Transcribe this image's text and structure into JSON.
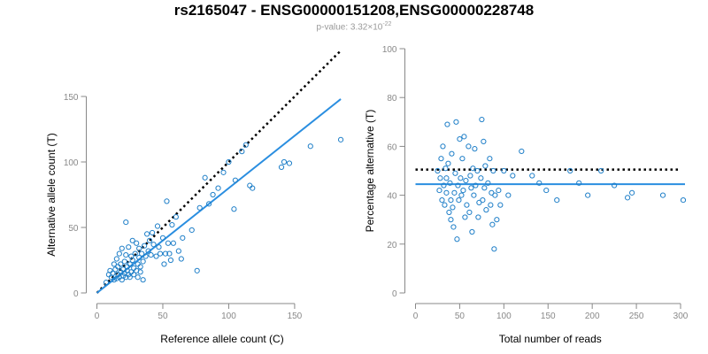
{
  "header": {
    "title": "rs2165047 - ENSG00000151208,ENSG00000228748",
    "subtitle_prefix": "p-value: 3.32×10",
    "subtitle_exponent": "-22"
  },
  "colors": {
    "points": "#1f7fc8",
    "fit": "#2a8ee0",
    "reference": "#000000",
    "axis": "#888888"
  },
  "chart_data": [
    {
      "type": "scatter",
      "xlabel": "Reference allele count (C)",
      "ylabel": "Alternative allele count (T)",
      "xlim": [
        0,
        190
      ],
      "ylim": [
        0,
        150
      ],
      "xticks": [
        0,
        50,
        100,
        150
      ],
      "yticks": [
        0,
        50,
        100,
        150
      ],
      "grid": false,
      "points": [
        [
          7,
          8
        ],
        [
          9,
          14
        ],
        [
          10,
          17
        ],
        [
          11,
          12
        ],
        [
          12,
          15
        ],
        [
          13,
          10
        ],
        [
          13,
          22
        ],
        [
          14,
          18
        ],
        [
          15,
          11
        ],
        [
          15,
          26
        ],
        [
          16,
          14
        ],
        [
          16,
          20
        ],
        [
          17,
          12
        ],
        [
          17,
          30
        ],
        [
          18,
          16
        ],
        [
          18,
          22
        ],
        [
          19,
          10
        ],
        [
          19,
          34
        ],
        [
          20,
          13
        ],
        [
          20,
          18
        ],
        [
          21,
          15
        ],
        [
          21,
          24
        ],
        [
          22,
          12
        ],
        [
          22,
          29
        ],
        [
          22,
          54
        ],
        [
          23,
          17
        ],
        [
          23,
          20
        ],
        [
          24,
          14
        ],
        [
          24,
          35
        ],
        [
          25,
          22
        ],
        [
          25,
          12
        ],
        [
          26,
          16
        ],
        [
          26,
          28
        ],
        [
          27,
          25
        ],
        [
          27,
          40
        ],
        [
          28,
          14
        ],
        [
          28,
          19
        ],
        [
          29,
          30
        ],
        [
          30,
          17
        ],
        [
          30,
          38
        ],
        [
          31,
          22
        ],
        [
          31,
          12
        ],
        [
          32,
          27
        ],
        [
          32,
          34
        ],
        [
          33,
          20
        ],
        [
          33,
          16
        ],
        [
          34,
          30
        ],
        [
          35,
          24
        ],
        [
          35,
          10
        ],
        [
          36,
          36
        ],
        [
          37,
          28
        ],
        [
          38,
          45
        ],
        [
          39,
          32
        ],
        [
          40,
          40
        ],
        [
          41,
          29
        ],
        [
          42,
          46
        ],
        [
          43,
          37
        ],
        [
          45,
          28
        ],
        [
          46,
          51
        ],
        [
          47,
          35
        ],
        [
          48,
          30
        ],
        [
          50,
          42
        ],
        [
          51,
          22
        ],
        [
          52,
          30
        ],
        [
          53,
          70
        ],
        [
          54,
          38
        ],
        [
          55,
          30
        ],
        [
          56,
          25
        ],
        [
          57,
          52
        ],
        [
          58,
          38
        ],
        [
          60,
          58
        ],
        [
          62,
          32
        ],
        [
          64,
          26
        ],
        [
          65,
          42
        ],
        [
          72,
          48
        ],
        [
          76,
          17
        ],
        [
          78,
          65
        ],
        [
          82,
          88
        ],
        [
          85,
          68
        ],
        [
          88,
          75
        ],
        [
          92,
          80
        ],
        [
          96,
          92
        ],
        [
          100,
          100
        ],
        [
          104,
          64
        ],
        [
          105,
          86
        ],
        [
          110,
          108
        ],
        [
          113,
          113
        ],
        [
          116,
          82
        ],
        [
          118,
          80
        ],
        [
          140,
          96
        ],
        [
          142,
          100
        ],
        [
          146,
          99
        ],
        [
          162,
          112
        ],
        [
          185,
          117
        ]
      ],
      "fit_line": [
        [
          0,
          0
        ],
        [
          185,
          148
        ]
      ],
      "reference_line": [
        [
          0,
          0
        ],
        [
          185,
          185
        ]
      ]
    },
    {
      "type": "scatter",
      "xlabel": "Total number of reads",
      "ylabel": "Percentage alternative (T)",
      "xlim": [
        0,
        305
      ],
      "ylim": [
        0,
        100
      ],
      "xticks": [
        0,
        50,
        100,
        150,
        200,
        250,
        300
      ],
      "yticks": [
        0,
        20,
        40,
        60,
        80,
        100
      ],
      "grid": false,
      "points": [
        [
          25,
          50
        ],
        [
          27,
          42
        ],
        [
          28,
          47
        ],
        [
          29,
          55
        ],
        [
          30,
          38
        ],
        [
          31,
          60
        ],
        [
          32,
          44
        ],
        [
          33,
          36
        ],
        [
          34,
          51
        ],
        [
          35,
          47
        ],
        [
          35,
          41
        ],
        [
          36,
          69
        ],
        [
          37,
          53
        ],
        [
          38,
          33
        ],
        [
          39,
          45
        ],
        [
          40,
          38
        ],
        [
          40,
          30
        ],
        [
          41,
          57
        ],
        [
          42,
          35
        ],
        [
          43,
          27
        ],
        [
          44,
          41
        ],
        [
          45,
          49
        ],
        [
          46,
          70
        ],
        [
          47,
          22
        ],
        [
          48,
          44
        ],
        [
          49,
          38
        ],
        [
          50,
          63
        ],
        [
          51,
          47
        ],
        [
          52,
          40
        ],
        [
          53,
          55
        ],
        [
          54,
          42
        ],
        [
          55,
          64
        ],
        [
          56,
          31
        ],
        [
          57,
          46
        ],
        [
          58,
          36
        ],
        [
          60,
          60
        ],
        [
          61,
          33
        ],
        [
          62,
          48
        ],
        [
          63,
          43
        ],
        [
          64,
          25
        ],
        [
          65,
          51
        ],
        [
          66,
          40
        ],
        [
          67,
          59
        ],
        [
          68,
          44
        ],
        [
          70,
          50
        ],
        [
          71,
          31
        ],
        [
          72,
          37
        ],
        [
          74,
          47
        ],
        [
          75,
          71
        ],
        [
          76,
          38
        ],
        [
          77,
          62
        ],
        [
          78,
          43
        ],
        [
          79,
          52
        ],
        [
          80,
          34
        ],
        [
          82,
          45
        ],
        [
          84,
          55
        ],
        [
          85,
          36
        ],
        [
          86,
          41
        ],
        [
          87,
          28
        ],
        [
          88,
          50
        ],
        [
          89,
          18
        ],
        [
          90,
          40
        ],
        [
          92,
          30
        ],
        [
          94,
          42
        ],
        [
          96,
          36
        ],
        [
          100,
          50
        ],
        [
          105,
          40
        ],
        [
          110,
          48
        ],
        [
          120,
          58
        ],
        [
          132,
          48
        ],
        [
          140,
          45
        ],
        [
          148,
          42
        ],
        [
          160,
          38
        ],
        [
          175,
          50
        ],
        [
          185,
          45
        ],
        [
          195,
          40
        ],
        [
          210,
          50
        ],
        [
          225,
          44
        ],
        [
          240,
          39
        ],
        [
          245,
          41
        ],
        [
          280,
          40
        ],
        [
          303,
          38
        ]
      ],
      "fit_y": 44.5,
      "reference_y": 50.5
    }
  ]
}
